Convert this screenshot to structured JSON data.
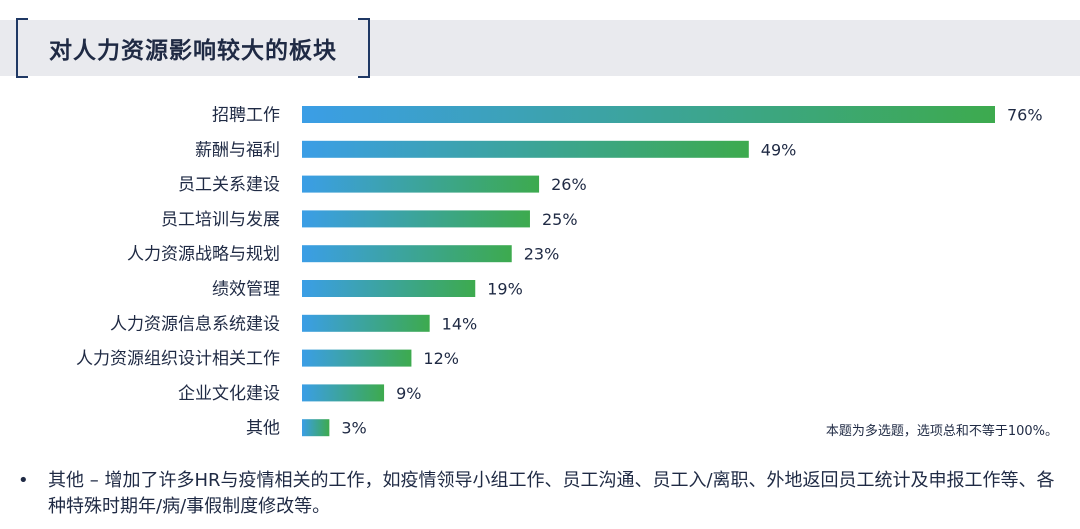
{
  "title": "对人力资源影响较大的板块",
  "note": "本题为多选题，选项总和不等于100%。",
  "bullet": {
    "marker": "•",
    "text": "其他 – 增加了许多HR与疫情相关的工作，如疫情领导小组工作、员工沟通、员工入/离职、外地返回员工统计及申报工作等、各种特殊时期年/病/事假制度修改等。"
  },
  "colors": {
    "bar_start": "#3b9ee6",
    "bar_end": "#3daa4e"
  },
  "chart_data": {
    "type": "bar",
    "orientation": "horizontal",
    "categories": [
      "招聘工作",
      "薪酬与福利",
      "员工关系建设",
      "员工培训与发展",
      "人力资源战略与规划",
      "绩效管理",
      "人力资源信息系统建设",
      "人力资源组织设计相关工作",
      "企业文化建设",
      "其他"
    ],
    "values": [
      76,
      49,
      26,
      25,
      23,
      19,
      14,
      12,
      9,
      3
    ],
    "value_labels": [
      "76%",
      "49%",
      "26%",
      "25%",
      "23%",
      "19%",
      "14%",
      "12%",
      "9%",
      "3%"
    ],
    "unit": "%",
    "xlim": [
      0,
      76
    ],
    "grid": false,
    "legend": "none"
  }
}
